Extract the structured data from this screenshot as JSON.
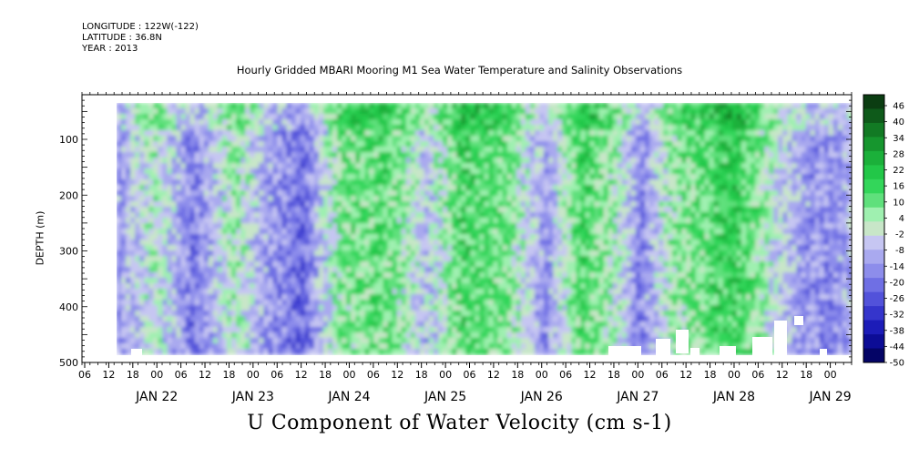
{
  "header": {
    "longitude": "LONGITUDE : 122W(-122)",
    "latitude": "LATITUDE : 36.8N",
    "year": "YEAR : 2013"
  },
  "chart_data": {
    "type": "heatmap",
    "title": "Hourly Gridded MBARI Mooring M1 Sea Water Temperature and Salinity Observations",
    "xlabel": "",
    "ylabel": "DEPTH (m)",
    "caption": "U Component of Water Velocity (cm s-1)",
    "y_range": [
      20,
      500
    ],
    "y_reversed": true,
    "y_ticks": [
      100,
      200,
      300,
      400,
      500
    ],
    "x_range_hours": [
      "JAN 21 06",
      "JAN 29 06"
    ],
    "x_hour_ticks": [
      "06",
      "12",
      "18",
      "00",
      "06",
      "12",
      "18",
      "00",
      "06",
      "12",
      "18",
      "00",
      "06",
      "12",
      "18",
      "00",
      "06",
      "12",
      "18",
      "00",
      "06",
      "12",
      "18",
      "00",
      "06",
      "12",
      "18",
      "00",
      "06",
      "12",
      "18",
      "00"
    ],
    "x_day_labels": [
      "JAN 22",
      "JAN 23",
      "JAN 24",
      "JAN 25",
      "JAN 26",
      "JAN 27",
      "JAN 28",
      "JAN 29"
    ],
    "colorbar": {
      "levels": [
        "46",
        "40",
        "34",
        "28",
        "22",
        "16",
        "10",
        "4",
        "-2",
        "-8",
        "-14",
        "-20",
        "-26",
        "-32",
        "-38",
        "-44",
        "-50"
      ],
      "min": -50,
      "max": 49,
      "colors_high_to_low": [
        "#0b3d12",
        "#0e5a1a",
        "#127a24",
        "#16962e",
        "#1bb03a",
        "#22c748",
        "#33d65a",
        "#5fe07c",
        "#9ff0b0",
        "#c8e6c8",
        "#c6c6f2",
        "#a9a9ef",
        "#8d8deb",
        "#6f6fe4",
        "#5252da",
        "#3535cc",
        "#1c1cb8",
        "#0c0c96",
        "#040466"
      ]
    },
    "field_summary": {
      "upper_value": "about -20 to 30 cm s-1 across the record",
      "pattern": "alternating vertical bands: bluish (weak negative) on JAN 22-24 and JAN 26-27, green (positive 10-25) dominant JAN 24-25 and JAN 27-28, strongest green near surface around JAN 25 and JAN 28"
    }
  }
}
